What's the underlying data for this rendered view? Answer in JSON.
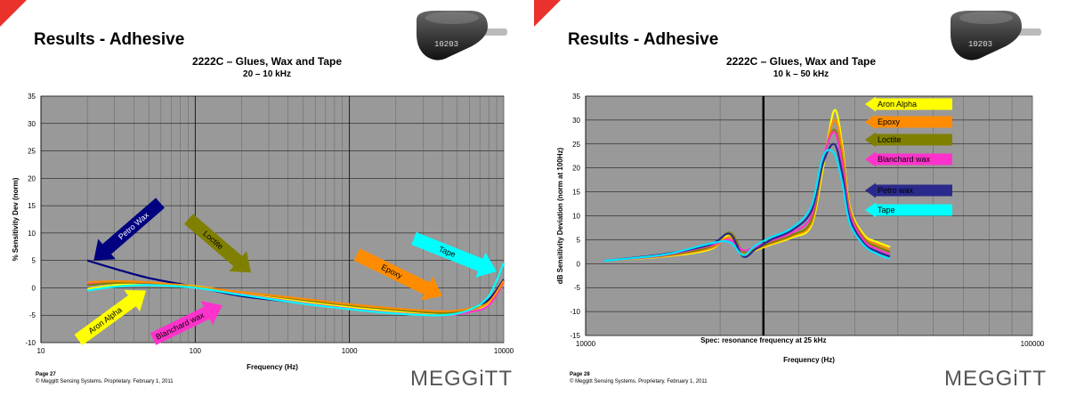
{
  "slides": [
    {
      "title": "Results - Adhesive",
      "subtitle": "2222C – Glues, Wax and Tape",
      "range": "20 – 10 kHz",
      "page": "Page 27",
      "copyright": "© Meggitt Sensing Systems. Proprietary. February 1, 2011",
      "logo": "MEGGiTT",
      "sensor_label": "10203"
    },
    {
      "title": "Results - Adhesive",
      "subtitle": "2222C – Glues, Wax and Tape",
      "range": "10 k – 50 kHz",
      "page": "Page 28",
      "copyright": "© Meggitt Sensing Systems. Proprietary. February 1, 2011",
      "logo": "MEGGiTT",
      "sensor_label": "10203"
    }
  ],
  "colors": {
    "aron_alpha": "#ffff00",
    "epoxy": "#ff8c00",
    "loctite": "#808000",
    "blanchard_wax": "#ff33cc",
    "petro_wax": "#000080",
    "tape": "#00ffff",
    "plot_bg": "#999999",
    "accent": "#e8322b"
  },
  "chart_data": [
    {
      "type": "line",
      "xscale": "log",
      "xlim": [
        10,
        10000
      ],
      "ylim": [
        -10,
        35
      ],
      "xticks": [
        "10",
        "100",
        "1000",
        "10000"
      ],
      "yticks": [
        "-10",
        "-5",
        "0",
        "5",
        "10",
        "15",
        "20",
        "25",
        "30",
        "35"
      ],
      "xlabel": "Frequency (Hz)",
      "ylabel": "% Sensitivity Dev (norm)",
      "grid": true,
      "series": [
        {
          "name": "Petro Wax",
          "color": "#000080",
          "x": [
            20,
            30,
            50,
            100,
            200,
            500,
            1000,
            2000,
            4000,
            6000,
            8000,
            10000
          ],
          "y": [
            5,
            3.5,
            1.8,
            0.2,
            -1.5,
            -2.8,
            -3.8,
            -4.6,
            -4.9,
            -4.0,
            -2.2,
            1.5
          ]
        },
        {
          "name": "Aron Alpha",
          "color": "#ffff00",
          "x": [
            20,
            30,
            50,
            100,
            200,
            500,
            1000,
            2000,
            4000,
            6000,
            8000,
            10000
          ],
          "y": [
            -0.2,
            0.5,
            0.8,
            0.3,
            -1.0,
            -2.5,
            -3.5,
            -4.3,
            -4.8,
            -4.2,
            -2.8,
            0.8
          ]
        },
        {
          "name": "Blanchard wax",
          "color": "#ff33cc",
          "x": [
            20,
            30,
            50,
            100,
            200,
            500,
            1000,
            2000,
            4000,
            6000,
            8000,
            10000
          ],
          "y": [
            0.8,
            1.0,
            0.8,
            0.0,
            -1.2,
            -2.8,
            -3.8,
            -4.6,
            -5.0,
            -4.4,
            -3.2,
            1.0
          ]
        },
        {
          "name": "Loctite",
          "color": "#808000",
          "x": [
            20,
            30,
            50,
            100,
            200,
            500,
            1000,
            2000,
            4000,
            6000,
            8000,
            10000
          ],
          "y": [
            0.5,
            0.9,
            0.9,
            0.2,
            -0.8,
            -2.2,
            -3.2,
            -4.0,
            -4.6,
            -4.0,
            -2.6,
            1.2
          ]
        },
        {
          "name": "Epoxy",
          "color": "#ff8c00",
          "x": [
            20,
            30,
            50,
            100,
            200,
            500,
            1000,
            2000,
            4000,
            6000,
            8000,
            10000
          ],
          "y": [
            1.0,
            1.2,
            1.0,
            0.2,
            -0.8,
            -2.0,
            -3.0,
            -3.8,
            -4.3,
            -3.8,
            -2.6,
            1.3
          ]
        },
        {
          "name": "Tape",
          "color": "#00ffff",
          "x": [
            20,
            30,
            50,
            100,
            200,
            500,
            1000,
            2000,
            4000,
            6000,
            8000,
            10000
          ],
          "y": [
            -0.5,
            0.2,
            0.5,
            0.0,
            -1.3,
            -2.9,
            -3.9,
            -4.7,
            -5.0,
            -4.0,
            -1.5,
            4.5
          ]
        }
      ],
      "annotations": [
        {
          "text": "Petro Wax",
          "x": 22,
          "y": 5,
          "color": "#000080",
          "text_color": "#ffffff"
        },
        {
          "text": "Loctite",
          "x": 230,
          "y": 2.8,
          "color": "#808000",
          "text_color": "#000000"
        },
        {
          "text": "Epoxy",
          "x": 4000,
          "y": -1.5,
          "color": "#ff8c00",
          "text_color": "#000000"
        },
        {
          "text": "Tape",
          "x": 9000,
          "y": 3.0,
          "color": "#00ffff",
          "text_color": "#000000"
        },
        {
          "text": "Aron Alpha",
          "x": 48,
          "y": -0.5,
          "color": "#ffff00",
          "text_color": "#000000"
        },
        {
          "text": "Blanchard  wax",
          "x": 150,
          "y": -3.2,
          "color": "#ff33cc",
          "text_color": "#000000"
        }
      ]
    },
    {
      "type": "line",
      "xscale": "log",
      "xlim": [
        10000,
        100000
      ],
      "ylim": [
        -15,
        35
      ],
      "xticks": [
        "10000",
        "100000"
      ],
      "yticks": [
        "-15",
        "-10",
        "-5",
        "0",
        "5",
        "10",
        "15",
        "20",
        "25",
        "30",
        "35"
      ],
      "xlabel": "Frequency (Hz)",
      "ylabel": "dB Sensitivity Deviation (norm at 100Hz)",
      "grid": true,
      "marker_line": {
        "x": 25000,
        "label": "Spec: resonance frequency at 25 kHz"
      },
      "series": [
        {
          "name": "Aron Alpha",
          "color": "#ffff00",
          "x": [
            11000,
            15000,
            19000,
            21000,
            22500,
            24000,
            26000,
            29000,
            32000,
            34000,
            36000,
            37500,
            39000,
            42000,
            45000,
            48000
          ],
          "y": [
            0.6,
            1.5,
            3.0,
            6.0,
            2.0,
            2.8,
            4.0,
            5.5,
            8.0,
            20.0,
            32.0,
            25.0,
            12.0,
            6.0,
            4.5,
            3.5
          ]
        },
        {
          "name": "Epoxy",
          "color": "#ff8c00",
          "x": [
            11000,
            15000,
            19000,
            21000,
            22500,
            24000,
            26000,
            29000,
            32000,
            34000,
            36000,
            37500,
            39000,
            42000,
            45000,
            48000
          ],
          "y": [
            0.6,
            1.6,
            3.2,
            5.5,
            2.2,
            3.0,
            4.2,
            5.8,
            8.5,
            21.0,
            30.0,
            24.0,
            11.5,
            5.5,
            4.0,
            3.0
          ]
        },
        {
          "name": "Loctite",
          "color": "#808000",
          "x": [
            11000,
            15000,
            19000,
            21000,
            22500,
            24000,
            26000,
            29000,
            32000,
            34000,
            36000,
            37500,
            39000,
            42000,
            45000,
            48000
          ],
          "y": [
            0.6,
            1.7,
            3.5,
            6.5,
            2.5,
            3.2,
            4.4,
            6.0,
            9.0,
            21.5,
            28.0,
            22.0,
            11.0,
            5.2,
            3.5,
            2.5
          ]
        },
        {
          "name": "Blanchard wax",
          "color": "#ff33cc",
          "x": [
            11000,
            15000,
            19000,
            21000,
            22500,
            24000,
            26000,
            29000,
            32000,
            34000,
            36000,
            37500,
            39000,
            42000,
            45000,
            48000
          ],
          "y": [
            0.6,
            1.8,
            3.8,
            5.0,
            2.8,
            3.5,
            4.8,
            6.5,
            10.0,
            22.0,
            27.5,
            21.0,
            10.5,
            4.8,
            3.0,
            2.0
          ]
        },
        {
          "name": "Petro wax",
          "color": "#2a2a8c",
          "x": [
            11000,
            15000,
            19000,
            21000,
            22500,
            24000,
            26000,
            29000,
            32000,
            34000,
            36000,
            37500,
            39000,
            42000,
            45000,
            48000
          ],
          "y": [
            0.6,
            2.0,
            4.0,
            6.2,
            1.5,
            3.0,
            5.0,
            7.0,
            11.0,
            21.0,
            25.0,
            19.0,
            9.5,
            4.2,
            2.5,
            1.5
          ]
        },
        {
          "name": "Tape",
          "color": "#00e5ff",
          "x": [
            11000,
            15000,
            19000,
            21000,
            22500,
            24000,
            26000,
            29000,
            32000,
            34000,
            36000,
            37500,
            39000,
            42000,
            45000,
            48000
          ],
          "y": [
            0.6,
            1.9,
            4.2,
            4.5,
            1.8,
            3.8,
            5.5,
            7.5,
            12.0,
            22.5,
            23.0,
            17.0,
            8.5,
            3.8,
            2.0,
            1.0
          ]
        }
      ],
      "legend": [
        {
          "text": "Aron Alpha",
          "color": "#ffff00"
        },
        {
          "text": "Epoxy",
          "color": "#ff8c00"
        },
        {
          "text": "Loctite",
          "color": "#808000"
        },
        {
          "text": "Blanchard wax",
          "color": "#ff33cc"
        },
        {
          "text": "Petro wax",
          "color": "#2a2a8c"
        },
        {
          "text": "Tape",
          "color": "#00ffff"
        }
      ]
    }
  ]
}
